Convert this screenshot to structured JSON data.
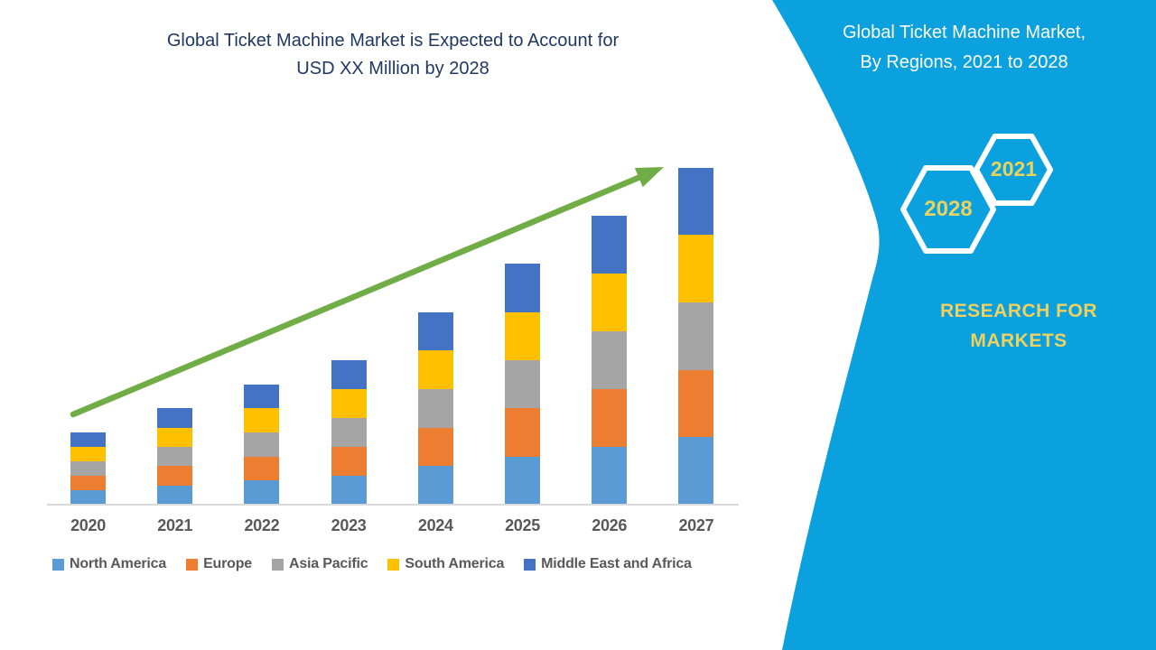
{
  "chart": {
    "title_line1": "Global Ticket Machine Market is Expected to Account for",
    "title_line2": "USD XX Million by 2028",
    "title_color": "#1F3864",
    "axis_label_color": "#595959",
    "axis_line_color": "#D9D9D9"
  },
  "chart_data": {
    "type": "bar",
    "stacked": true,
    "title": "Global Ticket Machine Market is Expected to Account for USD XX Million by 2028",
    "xlabel": "",
    "ylabel": "",
    "y_axis_visible": false,
    "grid": false,
    "legend_position": "bottom",
    "categories": [
      "2020",
      "2021",
      "2022",
      "2023",
      "2024",
      "2025",
      "2026",
      "2027"
    ],
    "series": [
      {
        "name": "North America",
        "color": "#5B9BD5",
        "values": [
          3,
          4,
          5,
          6,
          8,
          10,
          12,
          14
        ]
      },
      {
        "name": "Europe",
        "color": "#ED7D31",
        "values": [
          3,
          4,
          5,
          6,
          8,
          10,
          12,
          14
        ]
      },
      {
        "name": "Asia Pacific",
        "color": "#A5A5A5",
        "values": [
          3,
          4,
          5,
          6,
          8,
          10,
          12,
          14
        ]
      },
      {
        "name": "South America",
        "color": "#FFC000",
        "values": [
          3,
          4,
          5,
          6,
          8,
          10,
          12,
          14
        ]
      },
      {
        "name": "Middle East and Africa",
        "color": "#4472C4",
        "values": [
          3,
          4,
          5,
          6,
          8,
          10,
          12,
          14
        ]
      }
    ],
    "stack_totals": [
      15,
      20,
      25,
      30,
      40,
      50,
      60,
      70
    ]
  },
  "trend_arrow": {
    "color": "#70AD47"
  },
  "side_panel": {
    "background_color": "#0AA1DE",
    "heading_line1": "Global Ticket Machine Market,",
    "heading_line2": "By Regions, 2021 to 2028",
    "heading_color": "#FFFFFF",
    "hexagons": [
      {
        "label": "2028"
      },
      {
        "label": "2021"
      }
    ],
    "hexagon_outline_color": "#FFFFFF",
    "hexagon_label_color": "#E9D35E",
    "brand_line1": "RESEARCH FOR",
    "brand_line2": "MARKETS",
    "brand_color": "#EFD15F"
  }
}
